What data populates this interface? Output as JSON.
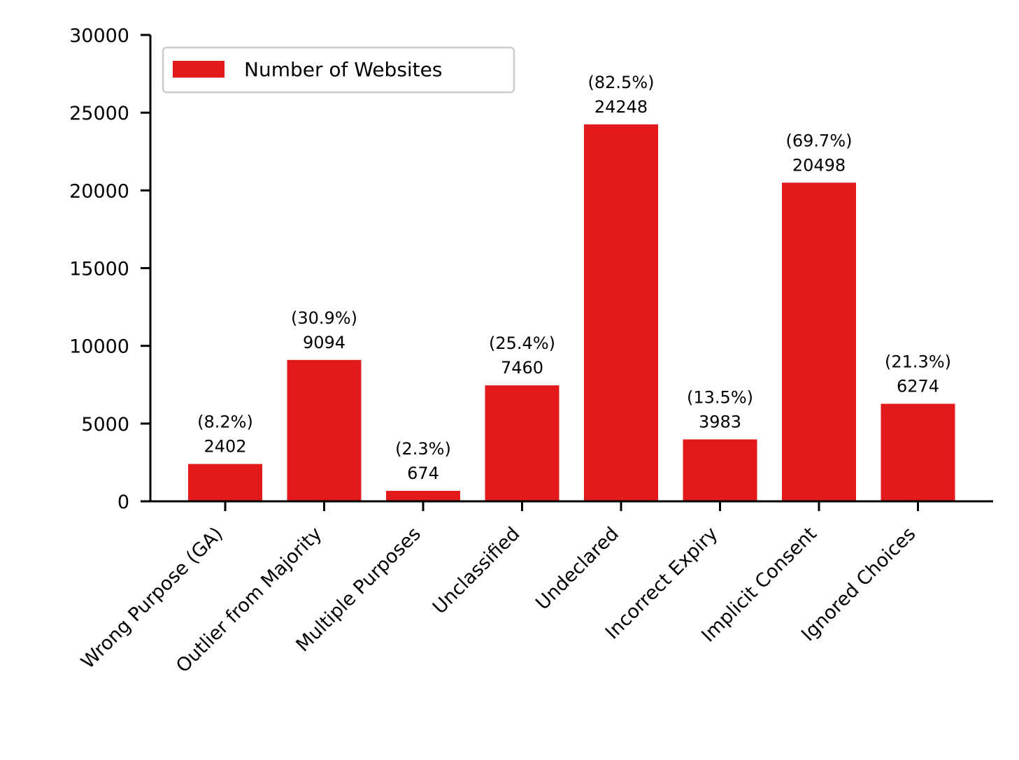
{
  "chart_data": {
    "type": "bar",
    "categories": [
      "Wrong Purpose (GA)",
      "Outlier from Majority",
      "Multiple Purposes",
      "Unclassified",
      "Undeclared",
      "Incorrect Expiry",
      "Implicit Consent",
      "Ignored Choices"
    ],
    "series": [
      {
        "name": "Number of Websites",
        "values": [
          2402,
          9094,
          674,
          7460,
          24248,
          3983,
          20498,
          6274
        ],
        "percent_labels": [
          "(8.2%)",
          "(30.9%)",
          "(2.3%)",
          "(25.4%)",
          "(82.5%)",
          "(13.5%)",
          "(69.7%)",
          "(21.3%)"
        ],
        "color": "#e31a1c"
      }
    ],
    "title": "",
    "xlabel": "",
    "ylabel": "",
    "ylim": [
      0,
      30000
    ],
    "yticks": [
      0,
      5000,
      10000,
      15000,
      20000,
      25000,
      30000
    ],
    "grid": false,
    "legend_position": "top-left"
  }
}
